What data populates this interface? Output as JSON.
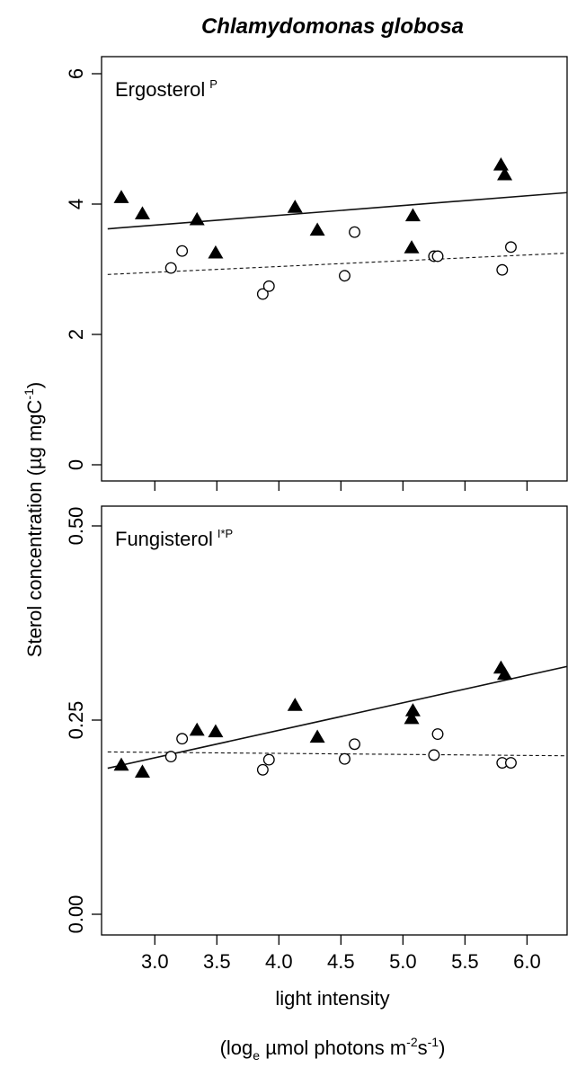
{
  "figure": {
    "title": "Chlamydomonas globosa",
    "ylabel": {
      "main": "Sterol concentration (µg mgC",
      "sup": "-1",
      "end": ")"
    },
    "xlabel_line1": "light intensity",
    "xlabel_line2": {
      "open": "(log",
      "sub": "e",
      "mid": " µmol photons m",
      "sup1": "-2",
      "s": "s",
      "sup2": "-1",
      "close": ")"
    }
  },
  "chart_data": [
    {
      "type": "scatter",
      "panel_label": "Ergosterol",
      "panel_superscript": "P",
      "xlim": [
        2.62,
        6.35
      ],
      "ylim": [
        -0.2,
        6.2
      ],
      "x_ticks": [
        3.0,
        3.5,
        4.0,
        4.5,
        5.0,
        5.5,
        6.0
      ],
      "x_tick_labels": [
        "3.0",
        "3.5",
        "4.0",
        "4.5",
        "5.0",
        "5.5",
        "6.0"
      ],
      "x_tick_labels_shown": false,
      "y_ticks": [
        0,
        2,
        4,
        6
      ],
      "y_tick_labels": [
        "0",
        "2",
        "4",
        "6"
      ],
      "series": [
        {
          "marker": "filled-triangle",
          "x": [
            2.73,
            2.9,
            3.34,
            3.49,
            4.13,
            4.31,
            5.07,
            5.08,
            5.79,
            5.82
          ],
          "y": [
            4.1,
            3.85,
            3.76,
            3.25,
            3.95,
            3.6,
            3.33,
            3.82,
            4.6,
            4.45
          ],
          "fit": {
            "style": "solid",
            "x": [
              2.62,
              6.35
            ],
            "y": [
              3.62,
              4.18
            ]
          }
        },
        {
          "marker": "open-circle",
          "x": [
            3.13,
            3.22,
            3.87,
            3.92,
            4.53,
            4.61,
            5.25,
            5.28,
            5.8,
            5.87
          ],
          "y": [
            3.02,
            3.28,
            2.62,
            2.74,
            2.9,
            3.57,
            3.2,
            3.2,
            2.99,
            3.34
          ],
          "fit": {
            "style": "dashed",
            "x": [
              2.62,
              6.35
            ],
            "y": [
              2.92,
              3.25
            ]
          }
        }
      ]
    },
    {
      "type": "scatter",
      "panel_label": "Fungisterol",
      "panel_superscript": "I*P",
      "xlim": [
        2.62,
        6.35
      ],
      "ylim": [
        -0.013,
        0.511
      ],
      "x_ticks": [
        3.0,
        3.5,
        4.0,
        4.5,
        5.0,
        5.5,
        6.0
      ],
      "x_tick_labels": [
        "3.0",
        "3.5",
        "4.0",
        "4.5",
        "5.0",
        "5.5",
        "6.0"
      ],
      "x_tick_labels_shown": true,
      "y_ticks": [
        0.0,
        0.25,
        0.5
      ],
      "y_tick_labels": [
        "0.00",
        "0.25",
        "0.50"
      ],
      "series": [
        {
          "marker": "filled-triangle",
          "x": [
            2.73,
            2.9,
            3.34,
            3.49,
            4.13,
            4.31,
            5.07,
            5.08,
            5.79,
            5.82
          ],
          "y": [
            0.192,
            0.183,
            0.237,
            0.235,
            0.269,
            0.228,
            0.252,
            0.262,
            0.317,
            0.309
          ],
          "fit": {
            "style": "solid",
            "x": [
              2.62,
              6.35
            ],
            "y": [
              0.188,
              0.32
            ]
          }
        },
        {
          "marker": "open-circle",
          "x": [
            3.13,
            3.22,
            3.87,
            3.92,
            4.53,
            4.61,
            5.25,
            5.28,
            5.8,
            5.87
          ],
          "y": [
            0.203,
            0.226,
            0.186,
            0.199,
            0.2,
            0.219,
            0.205,
            0.232,
            0.195,
            0.195
          ],
          "fit": {
            "style": "dashed",
            "x": [
              2.62,
              6.35
            ],
            "y": [
              0.209,
              0.204
            ]
          }
        }
      ]
    }
  ]
}
